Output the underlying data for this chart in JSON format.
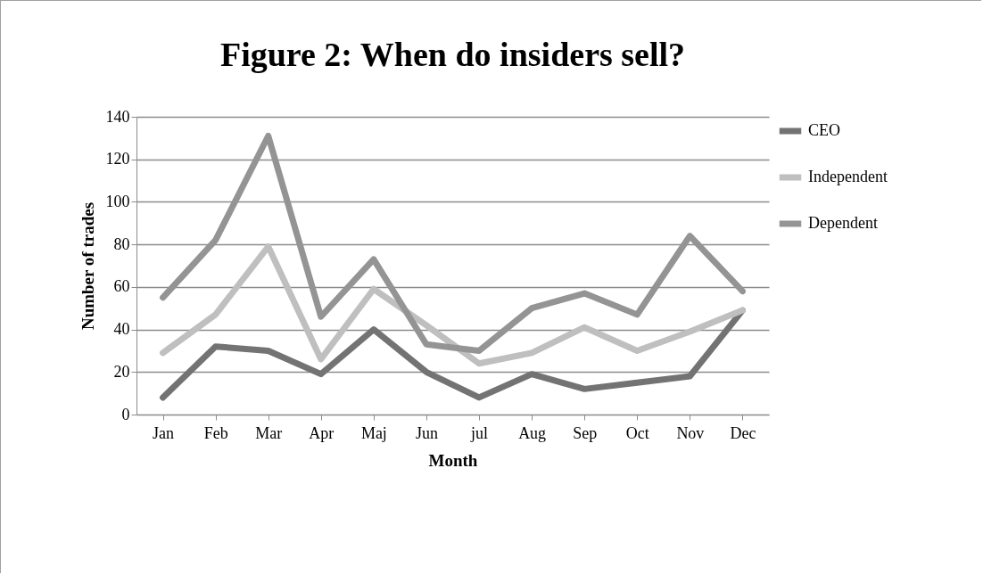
{
  "chart_data": {
    "type": "line",
    "title": "Figure 2: When do insiders sell?",
    "xlabel": "Month",
    "ylabel": "Number of trades",
    "categories": [
      "Jan",
      "Feb",
      "Mar",
      "Apr",
      "Maj",
      "Jun",
      "jul",
      "Aug",
      "Sep",
      "Oct",
      "Nov",
      "Dec"
    ],
    "series": [
      {
        "name": "CEO",
        "color": "#737373",
        "values": [
          8,
          32,
          30,
          19,
          40,
          20,
          8,
          19,
          12,
          15,
          18,
          49
        ]
      },
      {
        "name": "Independent",
        "color": "#bfbfbf",
        "values": [
          29,
          47,
          79,
          26,
          59,
          42,
          24,
          29,
          41,
          30,
          39,
          49
        ]
      },
      {
        "name": "Dependent",
        "color": "#949494",
        "values": [
          55,
          82,
          131,
          46,
          73,
          33,
          30,
          50,
          57,
          47,
          84,
          58
        ]
      }
    ],
    "ylim": [
      0,
      140
    ],
    "yticks": [
      0,
      20,
      40,
      60,
      80,
      100,
      120,
      140
    ],
    "grid": "y",
    "legend": "right",
    "marker": "none",
    "line_style": "solid"
  }
}
